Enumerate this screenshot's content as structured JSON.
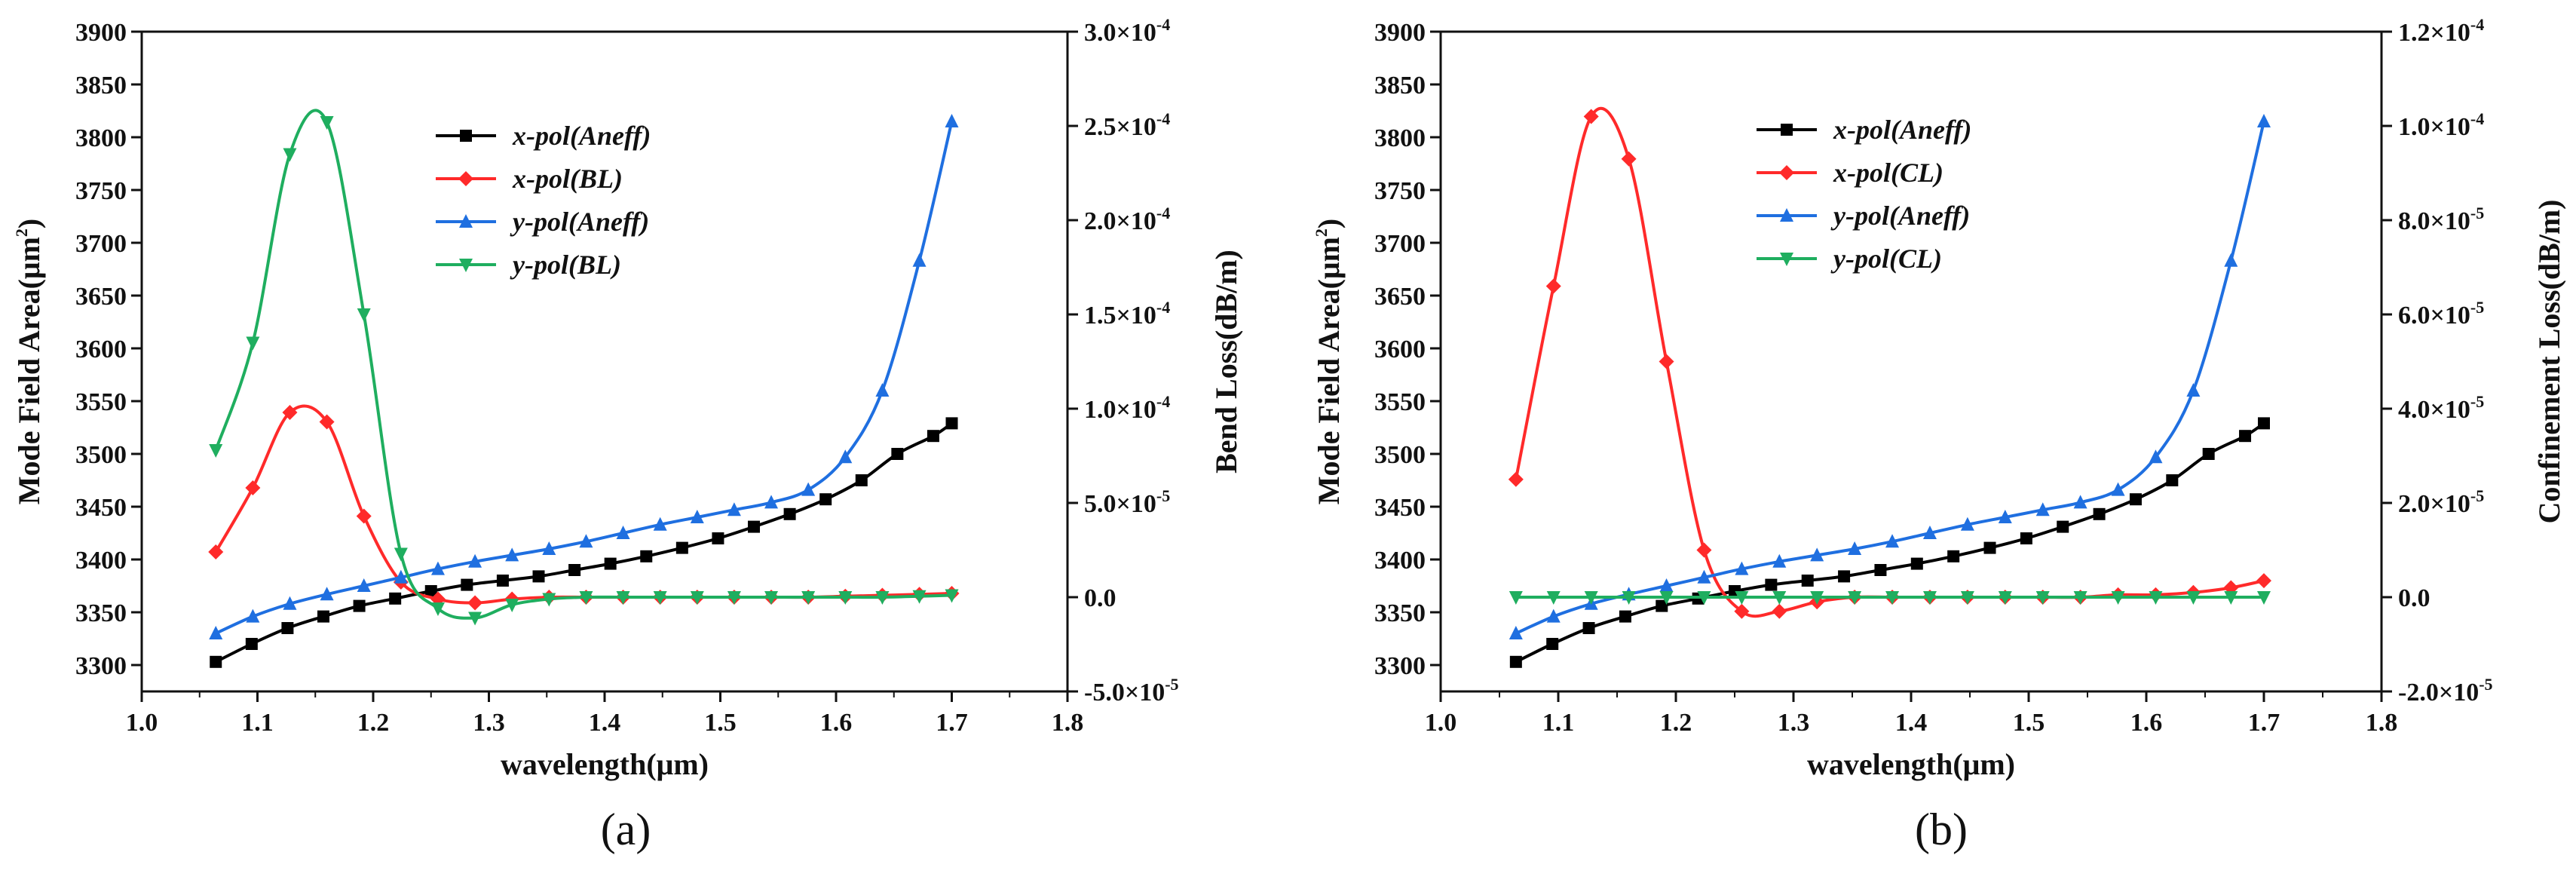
{
  "chart_data": [
    {
      "type": "line",
      "panel_label": "(a)",
      "xlabel": "wavelength(μm)",
      "ylabel": "Mode Field Area(μm",
      "ylabel_sup": "2",
      "ylabel_close": ")",
      "y2label": "Bend Loss(dB/m)",
      "xlim": [
        1.0,
        1.8
      ],
      "xticks": [
        "1.0",
        "1.1",
        "1.2",
        "1.3",
        "1.4",
        "1.5",
        "1.6",
        "1.7",
        "1.8"
      ],
      "ylim": [
        3275,
        3900
      ],
      "yticks": [
        "3300",
        "3350",
        "3400",
        "3450",
        "3500",
        "3550",
        "3600",
        "3650",
        "3700",
        "3750",
        "3800",
        "3850",
        "3900"
      ],
      "y2lim": [
        -5e-05,
        0.0003
      ],
      "y2ticks": [
        {
          "m": "-5.0",
          "e": "-5"
        },
        {
          "m": "0.0",
          "e": ""
        },
        {
          "m": "5.0",
          "e": "-5"
        },
        {
          "m": "1.0",
          "e": "-4"
        },
        {
          "m": "1.5",
          "e": "-4"
        },
        {
          "m": "2.0",
          "e": "-4"
        },
        {
          "m": "2.5",
          "e": "-4"
        },
        {
          "m": "3.0",
          "e": "-4"
        }
      ],
      "legend_position": "top-center",
      "series": [
        {
          "name": "x-pol(Aneff)",
          "axis": "left",
          "color": "#000000",
          "marker": "square",
          "x": [
            1.064,
            1.095,
            1.126,
            1.157,
            1.188,
            1.219,
            1.25,
            1.281,
            1.312,
            1.343,
            1.374,
            1.405,
            1.436,
            1.467,
            1.498,
            1.529,
            1.56,
            1.591,
            1.622,
            1.653,
            1.684,
            1.7
          ],
          "y": [
            3303,
            3320,
            3335,
            3346,
            3356,
            3363,
            3370,
            3376,
            3380,
            3384,
            3390,
            3396,
            3403,
            3411,
            3420,
            3431,
            3443,
            3457,
            3475,
            3500,
            3517,
            3529
          ]
        },
        {
          "name": "x-pol(BL)",
          "axis": "right",
          "color": "#ff2a2a",
          "marker": "diamond",
          "x": [
            1.064,
            1.096,
            1.128,
            1.16,
            1.192,
            1.224,
            1.256,
            1.288,
            1.32,
            1.352,
            1.384,
            1.416,
            1.448,
            1.48,
            1.512,
            1.544,
            1.576,
            1.608,
            1.64,
            1.672,
            1.7
          ],
          "y": [
            2.4e-05,
            5.8e-05,
            9.8e-05,
            9.3e-05,
            4.3e-05,
            8e-06,
            -1e-06,
            -3e-06,
            -1e-06,
            0.0,
            0.0,
            0.0,
            0.0,
            0.0,
            0.0,
            0.0,
            0.0,
            5e-07,
            1e-06,
            1.5e-06,
            2e-06
          ]
        },
        {
          "name": "y-pol(Aneff)",
          "axis": "left",
          "color": "#1f6fe0",
          "marker": "triangle-up",
          "x": [
            1.064,
            1.096,
            1.128,
            1.16,
            1.192,
            1.224,
            1.256,
            1.288,
            1.32,
            1.352,
            1.384,
            1.416,
            1.448,
            1.48,
            1.512,
            1.544,
            1.576,
            1.608,
            1.64,
            1.672,
            1.7
          ],
          "y": [
            3330,
            3346,
            3358,
            3367,
            3375,
            3383,
            3391,
            3398,
            3404,
            3410,
            3417,
            3425,
            3433,
            3440,
            3447,
            3454,
            3466,
            3497,
            3560,
            3683,
            3815
          ]
        },
        {
          "name": "y-pol(BL)",
          "axis": "right",
          "color": "#1fae5f",
          "marker": "triangle-down",
          "x": [
            1.064,
            1.096,
            1.128,
            1.16,
            1.192,
            1.224,
            1.256,
            1.288,
            1.32,
            1.352,
            1.384,
            1.416,
            1.448,
            1.48,
            1.512,
            1.544,
            1.576,
            1.608,
            1.64,
            1.672,
            1.7
          ],
          "y": [
            7.8e-05,
            0.000135,
            0.000235,
            0.000252,
            0.00015,
            2.3e-05,
            -6e-06,
            -1.1e-05,
            -4e-06,
            -1e-06,
            0.0,
            0.0,
            0.0,
            0.0,
            0.0,
            0.0,
            0.0,
            0.0,
            0.0,
            5e-07,
            1e-06
          ]
        }
      ]
    },
    {
      "type": "line",
      "panel_label": "(b)",
      "xlabel": "wavelength(μm)",
      "ylabel": "Mode Field Area(μm",
      "ylabel_sup": "2",
      "ylabel_close": ")",
      "y2label": "Confinement Loss(dB/m)",
      "xlim": [
        1.0,
        1.8
      ],
      "xticks": [
        "1.0",
        "1.1",
        "1.2",
        "1.3",
        "1.4",
        "1.5",
        "1.6",
        "1.7",
        "1.8"
      ],
      "ylim": [
        3275,
        3900
      ],
      "yticks": [
        "3300",
        "3350",
        "3400",
        "3450",
        "3500",
        "3550",
        "3600",
        "3650",
        "3700",
        "3750",
        "3800",
        "3850",
        "3900"
      ],
      "y2lim": [
        -2e-05,
        0.00012
      ],
      "y2ticks": [
        {
          "m": "-2.0",
          "e": "-5"
        },
        {
          "m": "0.0",
          "e": ""
        },
        {
          "m": "2.0",
          "e": "-5"
        },
        {
          "m": "4.0",
          "e": "-5"
        },
        {
          "m": "6.0",
          "e": "-5"
        },
        {
          "m": "8.0",
          "e": "-5"
        },
        {
          "m": "1.0",
          "e": "-4"
        },
        {
          "m": "1.2",
          "e": "-4"
        }
      ],
      "legend_position": "top-center",
      "series": [
        {
          "name": "x-pol(Aneff)",
          "axis": "left",
          "color": "#000000",
          "marker": "square",
          "x": [
            1.064,
            1.095,
            1.126,
            1.157,
            1.188,
            1.219,
            1.25,
            1.281,
            1.312,
            1.343,
            1.374,
            1.405,
            1.436,
            1.467,
            1.498,
            1.529,
            1.56,
            1.591,
            1.622,
            1.653,
            1.684,
            1.7
          ],
          "y": [
            3303,
            3320,
            3335,
            3346,
            3356,
            3363,
            3370,
            3376,
            3380,
            3384,
            3390,
            3396,
            3403,
            3411,
            3420,
            3431,
            3443,
            3457,
            3475,
            3500,
            3517,
            3529
          ]
        },
        {
          "name": "x-pol(CL)",
          "axis": "right",
          "color": "#ff2a2a",
          "marker": "diamond",
          "x": [
            1.064,
            1.096,
            1.128,
            1.16,
            1.192,
            1.224,
            1.256,
            1.288,
            1.32,
            1.352,
            1.384,
            1.416,
            1.448,
            1.48,
            1.512,
            1.544,
            1.576,
            1.608,
            1.64,
            1.672,
            1.7
          ],
          "y": [
            2.5e-05,
            6.6e-05,
            0.000102,
            9.3e-05,
            5e-05,
            1e-05,
            -3e-06,
            -3e-06,
            -1e-06,
            0.0,
            0.0,
            0.0,
            0.0,
            0.0,
            0.0,
            0.0,
            5e-07,
            5e-07,
            1e-06,
            2e-06,
            3.5e-06
          ]
        },
        {
          "name": "y-pol(Aneff)",
          "axis": "left",
          "color": "#1f6fe0",
          "marker": "triangle-up",
          "x": [
            1.064,
            1.096,
            1.128,
            1.16,
            1.192,
            1.224,
            1.256,
            1.288,
            1.32,
            1.352,
            1.384,
            1.416,
            1.448,
            1.48,
            1.512,
            1.544,
            1.576,
            1.608,
            1.64,
            1.672,
            1.7
          ],
          "y": [
            3330,
            3346,
            3358,
            3367,
            3375,
            3383,
            3391,
            3398,
            3404,
            3410,
            3417,
            3425,
            3433,
            3440,
            3447,
            3454,
            3466,
            3497,
            3560,
            3683,
            3815
          ]
        },
        {
          "name": "y-pol(CL)",
          "axis": "right",
          "color": "#1fae5f",
          "marker": "triangle-down",
          "x": [
            1.064,
            1.096,
            1.128,
            1.16,
            1.192,
            1.224,
            1.256,
            1.288,
            1.32,
            1.352,
            1.384,
            1.416,
            1.448,
            1.48,
            1.512,
            1.544,
            1.576,
            1.608,
            1.64,
            1.672,
            1.7
          ],
          "y": [
            0.0,
            0.0,
            0.0,
            0.0,
            0.0,
            0.0,
            0.0,
            0.0,
            0.0,
            0.0,
            0.0,
            0.0,
            0.0,
            0.0,
            0.0,
            0.0,
            0.0,
            0.0,
            0.0,
            0.0,
            0.0
          ]
        }
      ]
    }
  ]
}
